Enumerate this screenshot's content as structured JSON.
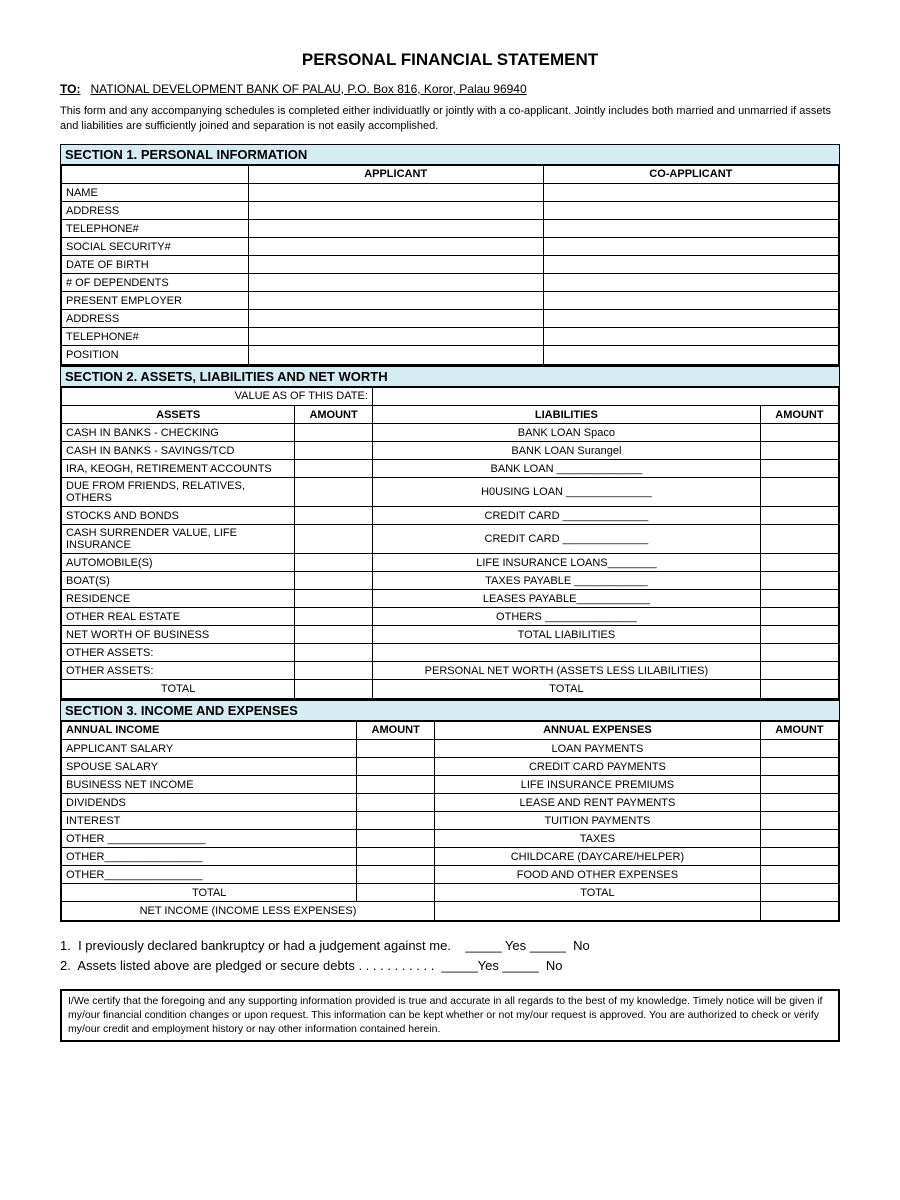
{
  "title": "PERSONAL FINANCIAL STATEMENT",
  "to_label": "TO:",
  "to_address": "NATIONAL DEVELOPMENT BANK OF PALAU, P.O. Box 816, Koror, Palau 96940",
  "intro": "This form and any accompanying schedules is completed either individuatlly or jointly with a co-applicant.  Jointly includes both married and unmarried if assets and liabilities are sufficiently joined and separation is not easily accomplished.",
  "section1": {
    "header": "SECTION 1.  PERSONAL INFORMATION",
    "col_applicant": "APPLICANT",
    "col_coapplicant": "CO-APPLICANT",
    "rows": [
      "NAME",
      "ADDRESS",
      "TELEPHONE#",
      "SOCIAL SECURITY#",
      "DATE OF BIRTH",
      "# OF DEPENDENTS",
      "PRESENT EMPLOYER",
      "ADDRESS",
      "TELEPHONE#",
      "POSITION"
    ]
  },
  "section2": {
    "header": "SECTION 2.  ASSETS, LIABILITIES AND NET WORTH",
    "value_as_of": "VALUE AS OF THIS DATE:",
    "col_assets": "ASSETS",
    "col_amount": "AMOUNT",
    "col_liabilities": "LIABILITIES",
    "rows": [
      {
        "asset": "CASH IN BANKS - CHECKING",
        "liab": "BANK LOAN  Spaco"
      },
      {
        "asset": "CASH IN BANKS - SAVINGS/TCD",
        "liab": "BANK LOAN  Surangel"
      },
      {
        "asset": "IRA, KEOGH, RETIREMENT ACCOUNTS",
        "liab": "BANK LOAN ______________"
      },
      {
        "asset": "DUE FROM FRIENDS, RELATIVES, OTHERS",
        "liab": "H0USING LOAN ______________"
      },
      {
        "asset": "STOCKS AND BONDS",
        "liab": "CREDIT CARD ______________"
      },
      {
        "asset": "CASH SURRENDER VALUE, LIFE INSURANCE",
        "liab": "CREDIT CARD ______________"
      },
      {
        "asset": "AUTOMOBILE(S)",
        "liab": "LIFE INSURANCE LOANS________"
      },
      {
        "asset": "BOAT(S)",
        "liab": "TAXES PAYABLE ____________"
      },
      {
        "asset": "RESIDENCE",
        "liab": "LEASES PAYABLE____________"
      },
      {
        "asset": "OTHER REAL ESTATE",
        "liab": "OTHERS _______________"
      },
      {
        "asset": "NET WORTH OF BUSINESS",
        "liab": "TOTAL LIABILITIES"
      },
      {
        "asset": "OTHER ASSETS:",
        "liab": ""
      },
      {
        "asset": "OTHER ASSETS:",
        "liab": "PERSONAL NET WORTH (ASSETS LESS LILABILITIES)"
      }
    ],
    "total_left": "TOTAL",
    "total_right": "TOTAL"
  },
  "section3": {
    "header": "SECTION 3.  INCOME AND EXPENSES",
    "col_income": "ANNUAL INCOME",
    "col_amount": "AMOUNT",
    "col_expenses": "ANNUAL EXPENSES",
    "rows": [
      {
        "inc": "APPLICANT SALARY",
        "exp": "LOAN PAYMENTS"
      },
      {
        "inc": "SPOUSE SALARY",
        "exp": "CREDIT CARD PAYMENTS"
      },
      {
        "inc": "BUSINESS NET INCOME",
        "exp": "LIFE INSURANCE PREMIUMS"
      },
      {
        "inc": "DIVIDENDS",
        "exp": "LEASE AND RENT PAYMENTS"
      },
      {
        "inc": "INTEREST",
        "exp": "TUITION PAYMENTS"
      },
      {
        "inc": "OTHER ________________",
        "exp": "TAXES"
      },
      {
        "inc": "OTHER________________",
        "exp": "CHILDCARE (DAYCARE/HELPER)"
      },
      {
        "inc": "OTHER________________",
        "exp": "FOOD AND OTHER EXPENSES"
      }
    ],
    "total_left": "TOTAL",
    "total_right": "TOTAL",
    "net_income": "NET INCOME (INCOME LESS EXPENSES)"
  },
  "questions": {
    "q1": "1.  I previously declared bankruptcy or had a judgement against me.    _____ Yes _____  No",
    "q2": "2.  Assets listed above are pledged or secure debts . . . . . . . . . . .  _____Yes _____  No"
  },
  "cert": "I/We certify that the foregoing and any supporting information provided is true and accurate in all regards to the best of my knowledge.  Timely notice will be given if my/our financial condition changes or upon request.  This information can be kept whether or not my/our request is approved.  You are authorized to check or verify my/our credit and employment history or nay other information contained herein.",
  "colors": {
    "section_bg": "#d6ecf3",
    "border": "#000000",
    "text": "#000000",
    "bg": "#ffffff"
  }
}
